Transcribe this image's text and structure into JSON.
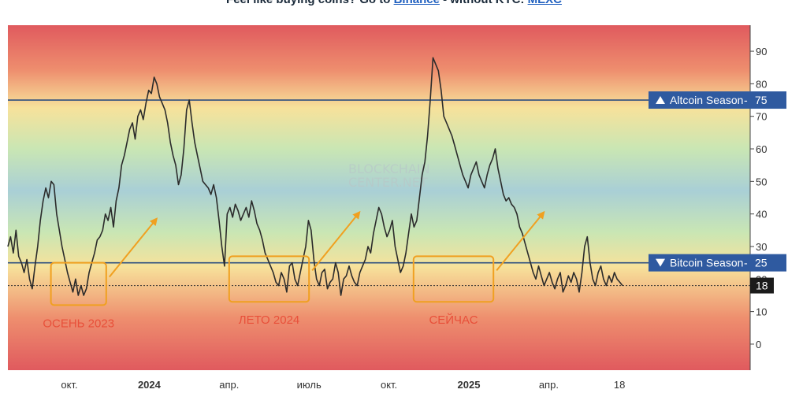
{
  "banner": {
    "prefix": "Feel like buying coins? Go to ",
    "link1": "Binance",
    "middle": " - without KYC: ",
    "link2": "MEXC"
  },
  "watermark": [
    "BLOCKCHAIN",
    "CENTER.NET"
  ],
  "colors": {
    "line": "#2b2b2b",
    "threshold": "#2f4f7f",
    "tag_bg": "#2f5aa0",
    "annotation": "#f0a020",
    "region_text": "#e8503a"
  },
  "chart_data": {
    "type": "line",
    "title": "",
    "xlabel": "",
    "ylabel": "",
    "ylim": [
      -8,
      98
    ],
    "y_ticks": [
      0,
      10,
      20,
      30,
      40,
      50,
      60,
      70,
      80,
      90
    ],
    "x_ticks": [
      "окт.",
      "2024",
      "апр.",
      "июль",
      "окт.",
      "2025",
      "апр.",
      "18"
    ],
    "current_value": "18",
    "thresholds": [
      {
        "label": "Altcoin Season",
        "value": 75,
        "value_label": "75",
        "direction": "up"
      },
      {
        "label": "Bitcoin Season",
        "value": 25,
        "value_label": "25",
        "direction": "down"
      }
    ],
    "annotations": [
      {
        "label": "ОСЕНЬ 2023",
        "x_range": [
          0.07,
          0.16
        ],
        "y_range": [
          12,
          25
        ]
      },
      {
        "label": "ЛЕТО 2024",
        "x_range": [
          0.36,
          0.49
        ],
        "y_range": [
          13,
          27
        ]
      },
      {
        "label": "СЕЙЧАС",
        "x_range": [
          0.66,
          0.79
        ],
        "y_range": [
          13,
          27
        ]
      }
    ],
    "series": [
      {
        "values": [
          30,
          33,
          28,
          35,
          27,
          25,
          22,
          26,
          20,
          17,
          24,
          30,
          38,
          44,
          48,
          45,
          50,
          49,
          40,
          35,
          30,
          26,
          22,
          19,
          16,
          20,
          15,
          18,
          15,
          17,
          22,
          25,
          28,
          32,
          33,
          35,
          40,
          38,
          42,
          36,
          44,
          48,
          55,
          58,
          62,
          66,
          68,
          63,
          70,
          72,
          69,
          74,
          78,
          77,
          82,
          80,
          76,
          74,
          72,
          68,
          62,
          58,
          55,
          49,
          52,
          60,
          72,
          75,
          68,
          62,
          58,
          54,
          50,
          49,
          48,
          46,
          49,
          45,
          38,
          30,
          24,
          40,
          42,
          39,
          43,
          41,
          38,
          40,
          42,
          39,
          44,
          41,
          37,
          35,
          32,
          28,
          26,
          24,
          22,
          19,
          18,
          22,
          20,
          16,
          24,
          25,
          20,
          18,
          22,
          26,
          30,
          38,
          35,
          26,
          20,
          18,
          22,
          23,
          17,
          19,
          20,
          25,
          22,
          15,
          20,
          21,
          24,
          21,
          19,
          18,
          22,
          24,
          26,
          30,
          28,
          34,
          38,
          42,
          40,
          36,
          33,
          35,
          38,
          30,
          26,
          22,
          24,
          28,
          34,
          40,
          36,
          38,
          45,
          52,
          56,
          64,
          75,
          88,
          86,
          84,
          78,
          70,
          68,
          66,
          64,
          61,
          58,
          55,
          52,
          50,
          48,
          52,
          54,
          56,
          52,
          50,
          48,
          52,
          55,
          57,
          60,
          54,
          50,
          46,
          44,
          45,
          43,
          42,
          40,
          36,
          34,
          31,
          28,
          25,
          22,
          20,
          24,
          21,
          18,
          20,
          22,
          19,
          17,
          20,
          22,
          16,
          18,
          21,
          19,
          22,
          20,
          16,
          22,
          30,
          33,
          25,
          20,
          18,
          22,
          24,
          20,
          18,
          21,
          19,
          22,
          20,
          19,
          18
        ]
      }
    ]
  }
}
